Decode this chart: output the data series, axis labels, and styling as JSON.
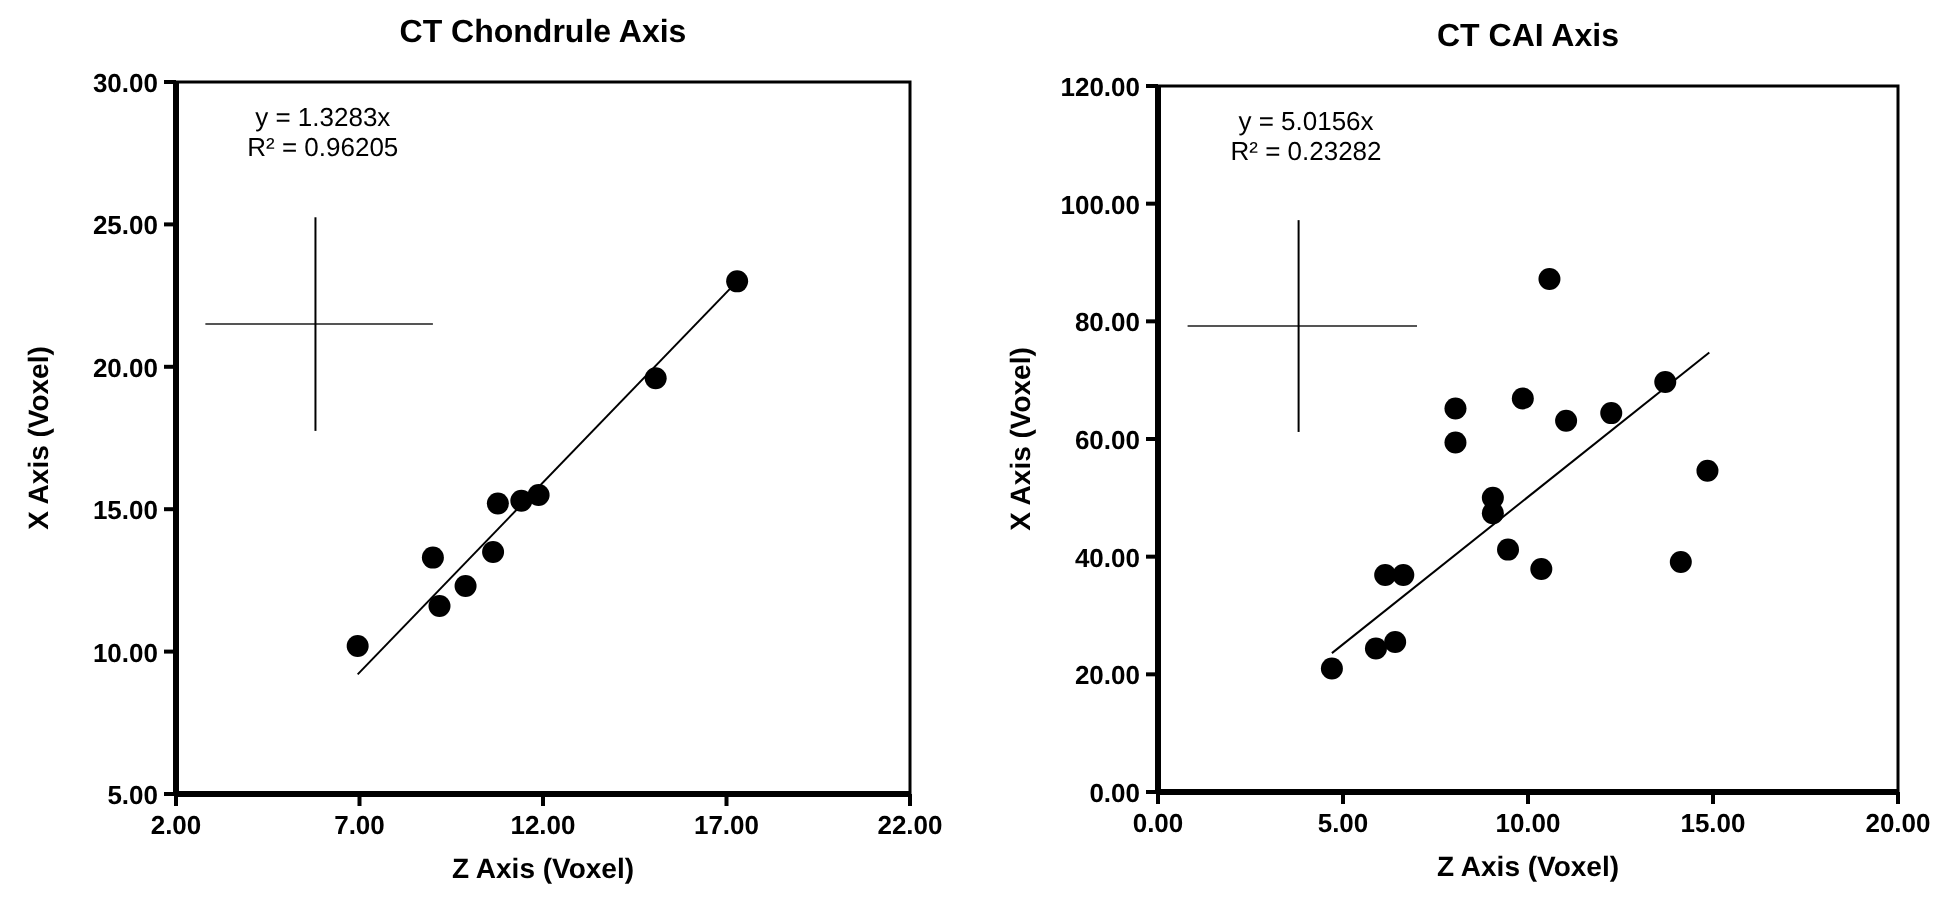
{
  "chart_data": [
    {
      "type": "scatter",
      "title": "CT Chondrule Axis",
      "xlabel": "Z Axis (Voxel)",
      "ylabel": "X Axis (Voxel)",
      "annotations": [
        "y = 1.3283x",
        "R² = 0.96205"
      ],
      "grid": false,
      "xlim": [
        2,
        22
      ],
      "xticks": [
        {
          "value": 2,
          "label": "2.00"
        },
        {
          "value": 7,
          "label": "7.00"
        },
        {
          "value": 12,
          "label": "12.00"
        },
        {
          "value": 17,
          "label": "17.00"
        },
        {
          "value": 22,
          "label": "22.00"
        }
      ],
      "ylim": [
        5,
        30
      ],
      "yticks": [
        {
          "value": 5,
          "label": "5.00"
        },
        {
          "value": 10,
          "label": "10.00"
        },
        {
          "value": 15,
          "label": "15.00"
        },
        {
          "value": 20,
          "label": "20.00"
        },
        {
          "value": 25,
          "label": "25.00"
        },
        {
          "value": 30,
          "label": "30.00"
        }
      ],
      "series": [
        {
          "marker": "circle",
          "color": "#000000",
          "x": [
            6.95,
            9.0,
            9.18,
            9.89,
            10.64,
            10.77,
            11.41,
            11.88,
            15.07,
            17.29
          ],
          "values": [
            10.2,
            13.3,
            11.6,
            12.3,
            13.5,
            15.2,
            15.3,
            15.5,
            19.6,
            23.0
          ]
        },
        {
          "type": "line",
          "marker": "none",
          "color": "#000000",
          "x": [
            6.95,
            17.29
          ],
          "values": [
            9.2,
            23.0
          ]
        }
      ]
    },
    {
      "type": "scatter",
      "title": "CT CAI Axis",
      "xlabel": "Z Axis (Voxel)",
      "ylabel": "X Axis (Voxel)",
      "annotations": [
        "y = 5.0156x",
        "R² = 0.23282"
      ],
      "grid": false,
      "xlim": [
        0,
        20
      ],
      "xticks": [
        {
          "value": 0,
          "label": "0.00"
        },
        {
          "value": 5,
          "label": "5.00"
        },
        {
          "value": 10,
          "label": "10.00"
        },
        {
          "value": 15,
          "label": "15.00"
        },
        {
          "value": 20,
          "label": "20.00"
        }
      ],
      "ylim": [
        0,
        120
      ],
      "yticks": [
        {
          "value": 0,
          "label": "0.00"
        },
        {
          "value": 20,
          "label": "20.00"
        },
        {
          "value": 40,
          "label": "40.00"
        },
        {
          "value": 60,
          "label": "60.00"
        },
        {
          "value": 80,
          "label": "80.00"
        },
        {
          "value": 100,
          "label": "100.00"
        },
        {
          "value": 120,
          "label": "120.00"
        }
      ],
      "series": [
        {
          "marker": "circle",
          "color": "#000000",
          "x": [
            4.7,
            5.89,
            6.41,
            6.14,
            6.63,
            8.04,
            8.04,
            9.05,
            9.05,
            9.46,
            9.86,
            10.36,
            10.58,
            11.03,
            12.25,
            13.71,
            14.13,
            14.85
          ],
          "values": [
            21.0,
            24.4,
            25.5,
            36.9,
            36.9,
            65.2,
            59.4,
            50.0,
            47.4,
            41.2,
            66.9,
            37.9,
            87.2,
            63.1,
            64.4,
            69.7,
            39.1,
            54.6
          ]
        },
        {
          "type": "line",
          "marker": "none",
          "color": "#000000",
          "x": [
            4.7,
            14.9
          ],
          "values": [
            23.6,
            74.7
          ]
        }
      ]
    }
  ]
}
